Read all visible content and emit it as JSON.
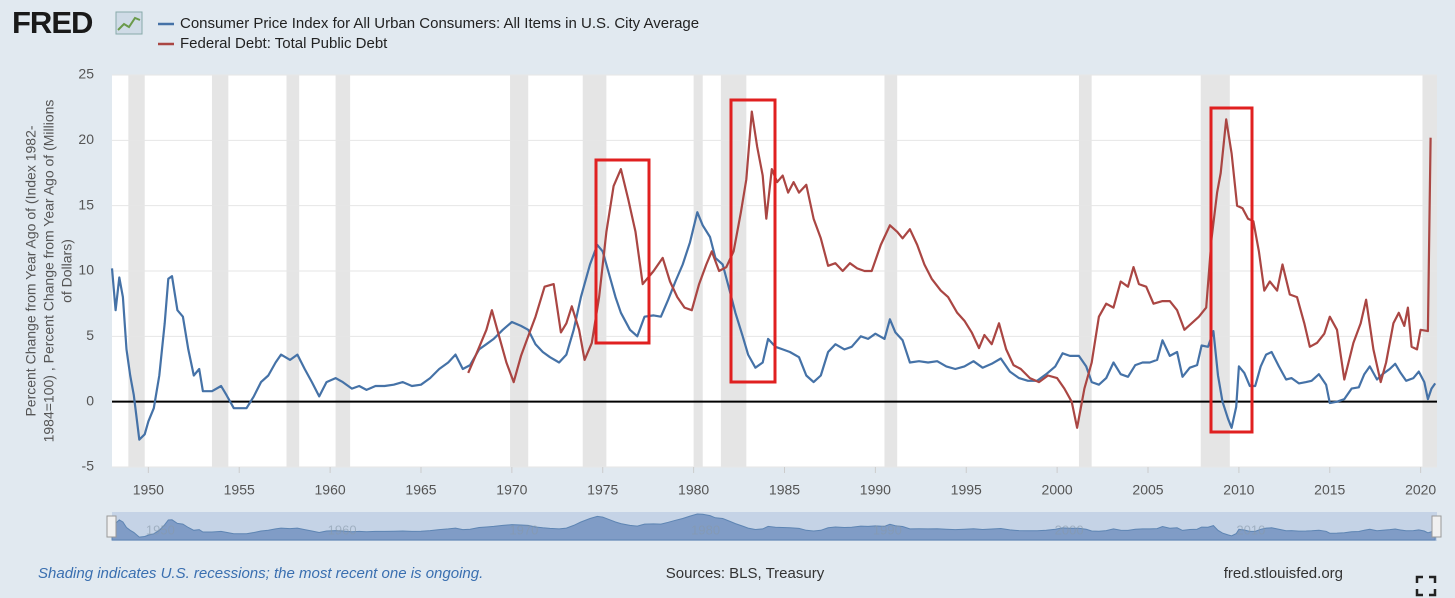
{
  "chart_data": {
    "type": "line",
    "logo": "FRED",
    "ylabel": [
      "Percent Change from Year Ago of (Index 1982-",
      "1984=100) , Percent Change from Year Ago of (Millions",
      "of Dollars)"
    ],
    "xlim": [
      1948.0,
      2020.9
    ],
    "xticks": [
      1950,
      1955,
      1960,
      1965,
      1970,
      1975,
      1980,
      1985,
      1990,
      1995,
      2000,
      2005,
      2010,
      2015,
      2020
    ],
    "ylim": [
      -5,
      25
    ],
    "yticks": [
      -5,
      0,
      5,
      10,
      15,
      20,
      25
    ],
    "baseline": 0,
    "grid": true,
    "recessions": [
      [
        1948.9,
        1949.8
      ],
      [
        1953.5,
        1954.4
      ],
      [
        1957.6,
        1958.3
      ],
      [
        1960.3,
        1961.1
      ],
      [
        1969.9,
        1970.9
      ],
      [
        1973.9,
        1975.2
      ],
      [
        1980.0,
        1980.5
      ],
      [
        1981.5,
        1982.9
      ],
      [
        1990.5,
        1991.2
      ],
      [
        2001.2,
        2001.9
      ],
      [
        2007.9,
        2009.5
      ],
      [
        2020.1,
        2020.9
      ]
    ],
    "navigator_ticks": [
      1950,
      1960,
      1970,
      1980,
      1990,
      2000,
      2010
    ],
    "note": "Shading indicates U.S. recessions; the most recent one is ongoing.",
    "sources": "Sources: BLS, Treasury",
    "url": "fred.stlouisfed.org",
    "series": [
      {
        "name": "Consumer Price Index for All Urban Consumers: All Items in U.S. City Average",
        "color": "#4572a7",
        "x": [
          1948.0,
          1948.2,
          1948.4,
          1948.6,
          1948.8,
          1949.0,
          1949.2,
          1949.5,
          1949.8,
          1950.0,
          1950.3,
          1950.6,
          1950.9,
          1951.1,
          1951.3,
          1951.6,
          1951.9,
          1952.2,
          1952.5,
          1952.8,
          1953.0,
          1953.5,
          1954.0,
          1954.3,
          1954.7,
          1955.0,
          1955.4,
          1955.8,
          1956.2,
          1956.6,
          1957.0,
          1957.3,
          1957.8,
          1958.2,
          1958.6,
          1959.0,
          1959.4,
          1959.8,
          1960.3,
          1960.7,
          1961.2,
          1961.6,
          1962.0,
          1962.5,
          1963.0,
          1963.5,
          1964.0,
          1964.5,
          1965.0,
          1965.5,
          1966.0,
          1966.5,
          1966.9,
          1967.3,
          1967.7,
          1968.2,
          1968.6,
          1969.0,
          1969.5,
          1970.0,
          1970.5,
          1970.9,
          1971.3,
          1971.7,
          1972.1,
          1972.6,
          1973.0,
          1973.4,
          1973.8,
          1974.3,
          1974.7,
          1975.0,
          1975.3,
          1975.7,
          1976.0,
          1976.5,
          1976.9,
          1977.3,
          1977.8,
          1978.2,
          1978.6,
          1979.0,
          1979.4,
          1979.8,
          1980.2,
          1980.5,
          1980.9,
          1981.2,
          1981.6,
          1982.0,
          1982.3,
          1982.7,
          1983.0,
          1983.4,
          1983.8,
          1984.1,
          1984.5,
          1984.9,
          1985.3,
          1985.8,
          1986.2,
          1986.6,
          1987.0,
          1987.4,
          1987.8,
          1988.3,
          1988.7,
          1989.2,
          1989.6,
          1990.0,
          1990.5,
          1990.8,
          1991.1,
          1991.5,
          1991.9,
          1992.4,
          1992.9,
          1993.4,
          1993.9,
          1994.4,
          1994.9,
          1995.4,
          1995.9,
          1996.4,
          1996.9,
          1997.4,
          1997.9,
          1998.4,
          1998.9,
          1999.4,
          1999.9,
          2000.3,
          2000.7,
          2001.2,
          2001.6,
          2001.9,
          2002.3,
          2002.7,
          2003.1,
          2003.5,
          2003.9,
          2004.3,
          2004.7,
          2005.1,
          2005.5,
          2005.8,
          2006.2,
          2006.6,
          2006.9,
          2007.3,
          2007.7,
          2007.95,
          2008.3,
          2008.6,
          2008.85,
          2009.1,
          2009.4,
          2009.6,
          2009.85,
          2010.0,
          2010.3,
          2010.6,
          2010.9,
          2011.2,
          2011.5,
          2011.8,
          2012.2,
          2012.6,
          2012.9,
          2013.3,
          2013.7,
          2014.0,
          2014.4,
          2014.8,
          2015.0,
          2015.4,
          2015.8,
          2016.2,
          2016.6,
          2016.9,
          2017.2,
          2017.6,
          2017.9,
          2018.3,
          2018.6,
          2018.9,
          2019.2,
          2019.6,
          2019.9,
          2020.2,
          2020.4,
          2020.6,
          2020.8
        ],
        "values": [
          10.2,
          7,
          9.5,
          8,
          4,
          2,
          0.5,
          -2.9,
          -2.5,
          -1.5,
          -0.5,
          2,
          6,
          9.4,
          9.6,
          7,
          6.5,
          4,
          2,
          2.5,
          0.8,
          0.8,
          1.2,
          0.5,
          -0.5,
          -0.5,
          -0.5,
          0.4,
          1.5,
          2,
          3,
          3.6,
          3.2,
          3.6,
          2.5,
          1.5,
          0.4,
          1.5,
          1.8,
          1.5,
          1.0,
          1.2,
          0.9,
          1.2,
          1.2,
          1.3,
          1.5,
          1.2,
          1.3,
          1.8,
          2.5,
          3.0,
          3.6,
          2.5,
          2.8,
          4.0,
          4.4,
          4.8,
          5.5,
          6.1,
          5.8,
          5.5,
          4.4,
          3.8,
          3.4,
          3.0,
          3.6,
          5.5,
          8.0,
          10.5,
          12.0,
          11.5,
          10.0,
          8.0,
          6.8,
          5.5,
          5.0,
          6.5,
          6.6,
          6.5,
          7.8,
          9.2,
          10.5,
          12.2,
          14.5,
          13.5,
          12.6,
          11.0,
          10.5,
          8.4,
          6.8,
          5.0,
          3.6,
          2.6,
          3.0,
          4.8,
          4.2,
          4.0,
          3.8,
          3.4,
          2.0,
          1.5,
          2.0,
          3.8,
          4.4,
          4.0,
          4.2,
          5.0,
          4.8,
          5.2,
          4.8,
          6.3,
          5.3,
          4.7,
          3.0,
          3.1,
          3.0,
          3.1,
          2.7,
          2.5,
          2.7,
          3.1,
          2.6,
          2.9,
          3.3,
          2.3,
          1.8,
          1.6,
          1.6,
          2.1,
          2.7,
          3.7,
          3.5,
          3.5,
          2.7,
          1.5,
          1.3,
          1.8,
          3.0,
          2.1,
          1.9,
          2.8,
          3.0,
          3.0,
          3.2,
          4.7,
          3.5,
          3.8,
          1.9,
          2.6,
          2.8,
          4.3,
          4.2,
          5.4,
          2.0,
          0.0,
          -1.3,
          -2.0,
          -0.4,
          2.7,
          2.2,
          1.2,
          1.2,
          2.7,
          3.6,
          3.8,
          2.7,
          1.7,
          1.8,
          1.4,
          1.5,
          1.6,
          2.1,
          1.3,
          -0.1,
          0.0,
          0.2,
          1.0,
          1.1,
          2.1,
          2.7,
          1.7,
          2.1,
          2.5,
          2.9,
          2.2,
          1.6,
          1.8,
          2.3,
          1.5,
          0.2,
          1.0,
          1.4
        ]
      },
      {
        "name": "Federal Debt: Total Public Debt",
        "color": "#aa4643",
        "x": [
          1967.6,
          1968.0,
          1968.6,
          1968.9,
          1969.3,
          1969.7,
          1970.1,
          1970.5,
          1970.9,
          1971.3,
          1971.8,
          1972.3,
          1972.7,
          1973.0,
          1973.3,
          1973.7,
          1974.0,
          1974.4,
          1974.8,
          1975.2,
          1975.6,
          1976.0,
          1976.4,
          1976.8,
          1977.2,
          1977.5,
          1977.8,
          1978.3,
          1978.7,
          1979.1,
          1979.5,
          1979.9,
          1980.3,
          1980.7,
          1981.0,
          1981.4,
          1981.8,
          1982.2,
          1982.6,
          1982.9,
          1983.2,
          1983.5,
          1983.8,
          1984.0,
          1984.3,
          1984.6,
          1984.9,
          1985.2,
          1985.5,
          1985.8,
          1986.2,
          1986.6,
          1987.0,
          1987.4,
          1987.8,
          1988.2,
          1988.6,
          1989.0,
          1989.4,
          1989.8,
          1990.3,
          1990.8,
          1991.2,
          1991.5,
          1991.9,
          1992.3,
          1992.7,
          1993.1,
          1993.6,
          1994.0,
          1994.5,
          1994.9,
          1995.3,
          1995.7,
          1996.0,
          1996.4,
          1996.8,
          1997.2,
          1997.6,
          1998.0,
          1998.5,
          1999.0,
          1999.5,
          2000.0,
          2000.4,
          2000.8,
          2001.1,
          2001.5,
          2001.9,
          2002.3,
          2002.7,
          2003.1,
          2003.5,
          2003.9,
          2004.2,
          2004.5,
          2004.9,
          2005.3,
          2005.8,
          2006.2,
          2006.6,
          2007.0,
          2007.4,
          2007.8,
          2008.2,
          2008.5,
          2008.8,
          2009.0,
          2009.3,
          2009.6,
          2009.9,
          2010.2,
          2010.5,
          2010.8,
          2011.1,
          2011.4,
          2011.7,
          2012.1,
          2012.4,
          2012.8,
          2013.2,
          2013.6,
          2013.9,
          2014.3,
          2014.7,
          2015.0,
          2015.4,
          2015.8,
          2016.3,
          2016.7,
          2017.0,
          2017.4,
          2017.8,
          2018.1,
          2018.5,
          2018.8,
          2019.1,
          2019.3,
          2019.5,
          2019.8,
          2020.0,
          2020.4,
          2020.55
        ],
        "values": [
          2.2,
          3.5,
          5.5,
          7.0,
          5.0,
          3.0,
          1.5,
          3.5,
          5.0,
          6.5,
          8.8,
          9.0,
          5.3,
          6.0,
          7.3,
          5.5,
          3.2,
          4.5,
          8.0,
          13.0,
          16.5,
          17.8,
          15.5,
          13.0,
          9.0,
          9.5,
          10.0,
          11.0,
          9.2,
          8.0,
          7.2,
          7.0,
          9.0,
          10.5,
          11.5,
          10.0,
          10.3,
          11.5,
          14.5,
          17.0,
          22.2,
          19.5,
          17.3,
          14.0,
          17.8,
          16.8,
          17.3,
          16.0,
          16.8,
          16.0,
          16.6,
          14.0,
          12.5,
          10.4,
          10.6,
          10.0,
          10.6,
          10.2,
          10.0,
          10.0,
          12.0,
          13.5,
          13.0,
          12.5,
          13.2,
          12.0,
          10.5,
          9.4,
          8.5,
          8.0,
          6.8,
          6.2,
          5.3,
          4.1,
          5.1,
          4.4,
          6.0,
          4.0,
          2.8,
          2.5,
          1.8,
          1.5,
          2.0,
          1.8,
          1.0,
          0.0,
          -2.0,
          1.0,
          3.0,
          6.5,
          7.5,
          7.2,
          9.2,
          8.8,
          10.3,
          9.0,
          8.8,
          7.5,
          7.7,
          7.7,
          7.0,
          5.5,
          6.0,
          6.5,
          7.2,
          12.5,
          16.0,
          17.5,
          21.6,
          19.0,
          15.0,
          14.8,
          14.0,
          13.8,
          11.5,
          8.5,
          9.2,
          8.5,
          10.5,
          8.2,
          8.0,
          6.0,
          4.2,
          4.5,
          5.2,
          6.5,
          5.5,
          1.7,
          4.5,
          6.0,
          7.8,
          4.0,
          1.5,
          3.0,
          6.0,
          6.8,
          5.8,
          7.2,
          4.2,
          4.0,
          5.5,
          5.4,
          20.2
        ]
      }
    ]
  }
}
